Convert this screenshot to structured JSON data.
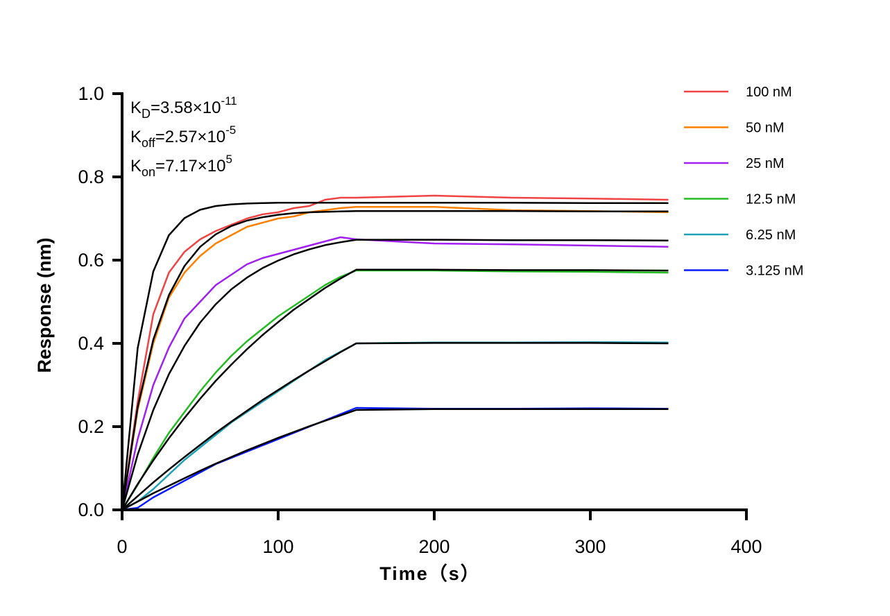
{
  "chart_data": {
    "type": "line",
    "xlabel": "Time（s）",
    "ylabel": "Response (nm)",
    "xlim": [
      0,
      400
    ],
    "ylim": [
      0,
      1.0
    ],
    "xticks": [
      "0",
      "100",
      "200",
      "300",
      "400"
    ],
    "yticks": [
      "0.0",
      "0.2",
      "0.4",
      "0.6",
      "0.8",
      "1.0"
    ],
    "grid": false,
    "legend_position": "top-right",
    "annotations": [
      {
        "main": "K",
        "sub": "D",
        "text": "=3.58×10",
        "sup": "-11"
      },
      {
        "main": "K",
        "sub": "off",
        "text": "=2.57×10",
        "sup": "-5"
      },
      {
        "main": "K",
        "sub": "on",
        "text": "=7.17×10",
        "sup": "5"
      }
    ],
    "x": [
      0,
      10,
      20,
      30,
      40,
      50,
      60,
      70,
      80,
      90,
      100,
      110,
      120,
      130,
      140,
      150,
      200,
      250,
      300,
      350
    ],
    "series": [
      {
        "name": "100 nM",
        "color": "#f04444",
        "values": [
          0,
          0.26,
          0.47,
          0.57,
          0.62,
          0.65,
          0.67,
          0.685,
          0.7,
          0.71,
          0.715,
          0.725,
          0.73,
          0.745,
          0.75,
          0.75,
          0.755,
          0.75,
          0.748,
          0.745
        ],
        "fit": [
          0,
          0.389,
          0.573,
          0.66,
          0.701,
          0.721,
          0.73,
          0.734,
          0.736,
          0.737,
          0.738,
          0.738,
          0.738,
          0.738,
          0.738,
          0.738,
          0.738,
          0.738,
          0.737,
          0.737
        ]
      },
      {
        "name": "50 nM",
        "color": "#ff8000",
        "values": [
          0,
          0.24,
          0.4,
          0.51,
          0.57,
          0.61,
          0.64,
          0.66,
          0.68,
          0.69,
          0.7,
          0.705,
          0.715,
          0.72,
          0.725,
          0.728,
          0.728,
          0.72,
          0.718,
          0.715
        ],
        "fit": [
          0,
          0.247,
          0.409,
          0.516,
          0.586,
          0.632,
          0.662,
          0.682,
          0.695,
          0.703,
          0.709,
          0.713,
          0.715,
          0.716,
          0.717,
          0.718,
          0.718,
          0.718,
          0.717,
          0.717
        ]
      },
      {
        "name": "25 nM",
        "color": "#a020f0",
        "values": [
          0,
          0.17,
          0.3,
          0.39,
          0.46,
          0.5,
          0.54,
          0.565,
          0.59,
          0.605,
          0.615,
          0.625,
          0.635,
          0.645,
          0.655,
          0.65,
          0.64,
          0.638,
          0.635,
          0.632
        ],
        "fit": [
          0,
          0.133,
          0.24,
          0.326,
          0.394,
          0.45,
          0.494,
          0.53,
          0.558,
          0.581,
          0.599,
          0.614,
          0.626,
          0.636,
          0.643,
          0.649,
          0.649,
          0.648,
          0.648,
          0.647
        ]
      },
      {
        "name": "12.5 nM",
        "color": "#22bb22",
        "values": [
          0,
          0.06,
          0.125,
          0.185,
          0.235,
          0.285,
          0.33,
          0.37,
          0.405,
          0.435,
          0.465,
          0.49,
          0.515,
          0.54,
          0.56,
          0.575,
          0.575,
          0.573,
          0.572,
          0.57
        ],
        "fit": [
          0,
          0.062,
          0.119,
          0.172,
          0.221,
          0.267,
          0.31,
          0.349,
          0.386,
          0.42,
          0.451,
          0.481,
          0.507,
          0.533,
          0.556,
          0.577,
          0.577,
          0.576,
          0.576,
          0.575
        ]
      },
      {
        "name": "6.25 nM",
        "color": "#1fa0b4",
        "values": [
          0,
          0.02,
          0.05,
          0.085,
          0.12,
          0.15,
          0.18,
          0.21,
          0.235,
          0.26,
          0.285,
          0.31,
          0.335,
          0.36,
          0.38,
          0.4,
          0.402,
          0.402,
          0.403,
          0.402
        ],
        "fit": [
          0,
          0.033,
          0.066,
          0.097,
          0.127,
          0.156,
          0.185,
          0.212,
          0.238,
          0.264,
          0.288,
          0.312,
          0.335,
          0.357,
          0.379,
          0.4,
          0.401,
          0.401,
          0.401,
          0.4
        ]
      },
      {
        "name": "3.125 nM",
        "color": "#0a1aff",
        "values": [
          0,
          0.005,
          0.03,
          0.05,
          0.07,
          0.09,
          0.11,
          0.125,
          0.14,
          0.155,
          0.17,
          0.185,
          0.2,
          0.215,
          0.23,
          0.245,
          0.243,
          0.243,
          0.244,
          0.243
        ],
        "fit": [
          0,
          0.02,
          0.04,
          0.058,
          0.076,
          0.094,
          0.111,
          0.127,
          0.143,
          0.158,
          0.173,
          0.187,
          0.201,
          0.214,
          0.227,
          0.24,
          0.242,
          0.242,
          0.242,
          0.242
        ]
      }
    ]
  }
}
